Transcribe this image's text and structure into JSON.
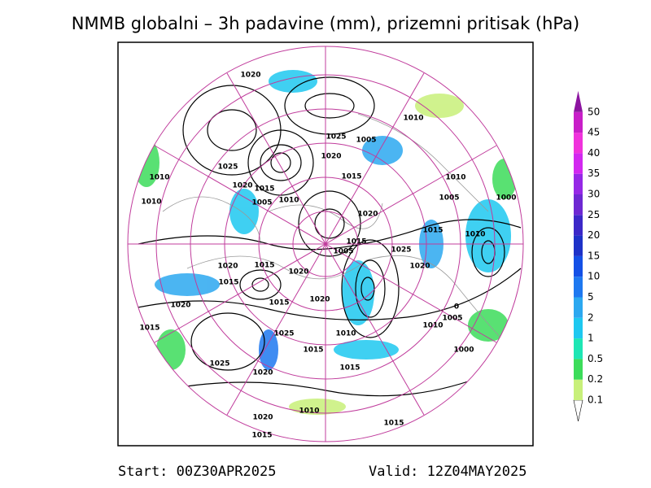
{
  "header": {
    "title": "NMMB globalni – 3h padavine (mm), prizemni pritisak (hPa)"
  },
  "legend": {
    "levels": [
      "0.1",
      "0.2",
      "0.5",
      "1",
      "2",
      "5",
      "10",
      "15",
      "20",
      "25",
      "30",
      "35",
      "40",
      "45",
      "50"
    ],
    "colors": [
      "#c8f07a",
      "#3cdc5a",
      "#1ee6b4",
      "#1ec8f0",
      "#2ca8f0",
      "#1e78f0",
      "#1450e6",
      "#1e32c8",
      "#3c28c8",
      "#6e28d2",
      "#9628e6",
      "#d228f0",
      "#f032dc",
      "#c81ec8",
      "#8c14a0"
    ]
  },
  "map": {
    "isobar_labels": [
      "1020",
      "1025",
      "1005",
      "1010",
      "1020",
      "1025",
      "1015",
      "1010",
      "1020",
      "1015",
      "1010",
      "1005",
      "1010",
      "1010",
      "1005",
      "1000",
      "1020",
      "1015",
      "1010",
      "1015",
      "1025",
      "1005",
      "1020",
      "1020",
      "1015",
      "1020",
      "1015",
      "1015",
      "1020",
      "1020",
      "1015",
      "1025",
      "1010",
      "1010",
      "1005",
      "1015",
      "1000",
      "1025",
      "1020",
      "1015",
      "1020",
      "1010",
      "1015",
      "1015",
      "0"
    ]
  },
  "footer": {
    "start": "Start: 00Z30APR2025",
    "valid": "Valid: 12Z04MAY2025"
  }
}
